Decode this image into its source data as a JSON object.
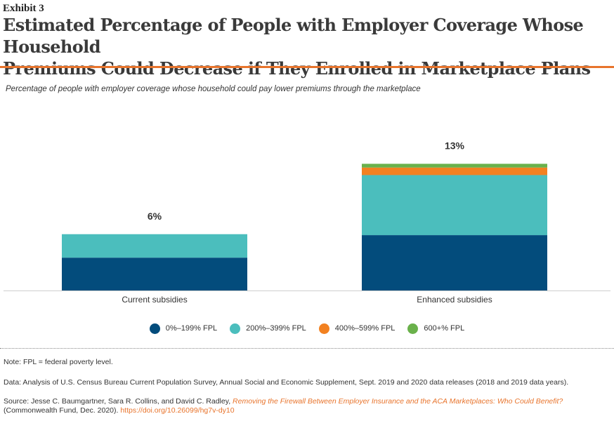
{
  "header": {
    "exhibit": "Exhibit 3",
    "title_line1": "Estimated Percentage of People with Employer Coverage Whose Household",
    "title_line2": "Premiums Could Decrease if They Enrolled in Marketplace Plans"
  },
  "subtitle": "Percentage of people with employer coverage whose household could pay lower premiums through the marketplace",
  "colors": {
    "accent": "#e8742c",
    "fpl_0_199": "#034c7c",
    "fpl_200_399": "#4bbebd",
    "fpl_400_599": "#f28121",
    "fpl_600_plus": "#6ab14b"
  },
  "chart_data": {
    "type": "bar",
    "stacked": true,
    "categories": [
      "Current subsidies",
      "Enhanced subsidies"
    ],
    "totals_labels": [
      "6%",
      "13%"
    ],
    "series": [
      {
        "name": "0%–199% FPL",
        "values": [
          3.5,
          5.9
        ]
      },
      {
        "name": "200%–399% FPL",
        "values": [
          2.5,
          6.4
        ]
      },
      {
        "name": "400%–599% FPL",
        "values": [
          0,
          0.8
        ]
      },
      {
        "name": "600+% FPL",
        "values": [
          0,
          0.4
        ]
      }
    ],
    "ylim": [
      0,
      16
    ],
    "grid": false,
    "legend": "bottom-center",
    "title": "",
    "xlabel": "",
    "ylabel": ""
  },
  "notes": {
    "note": "Note: FPL = federal poverty level.",
    "data": "Data: Analysis of U.S. Census Bureau Current Population Survey, Annual Social and Economic Supplement, Sept. 2019 and 2020 data releases (2018 and 2019 data years).",
    "source_prefix": "Source: Jesse C. Baumgartner, Sara R. Collins, and David C. Radley, ",
    "source_title": "Removing the Firewall Between Employer Insurance and the ACA Marketplaces: Who Could Benefit?",
    "source_suffix": "(Commonwealth Fund, Dec. 2020). ",
    "source_link": "https://doi.org/10.26099/hg7v-dy10"
  }
}
